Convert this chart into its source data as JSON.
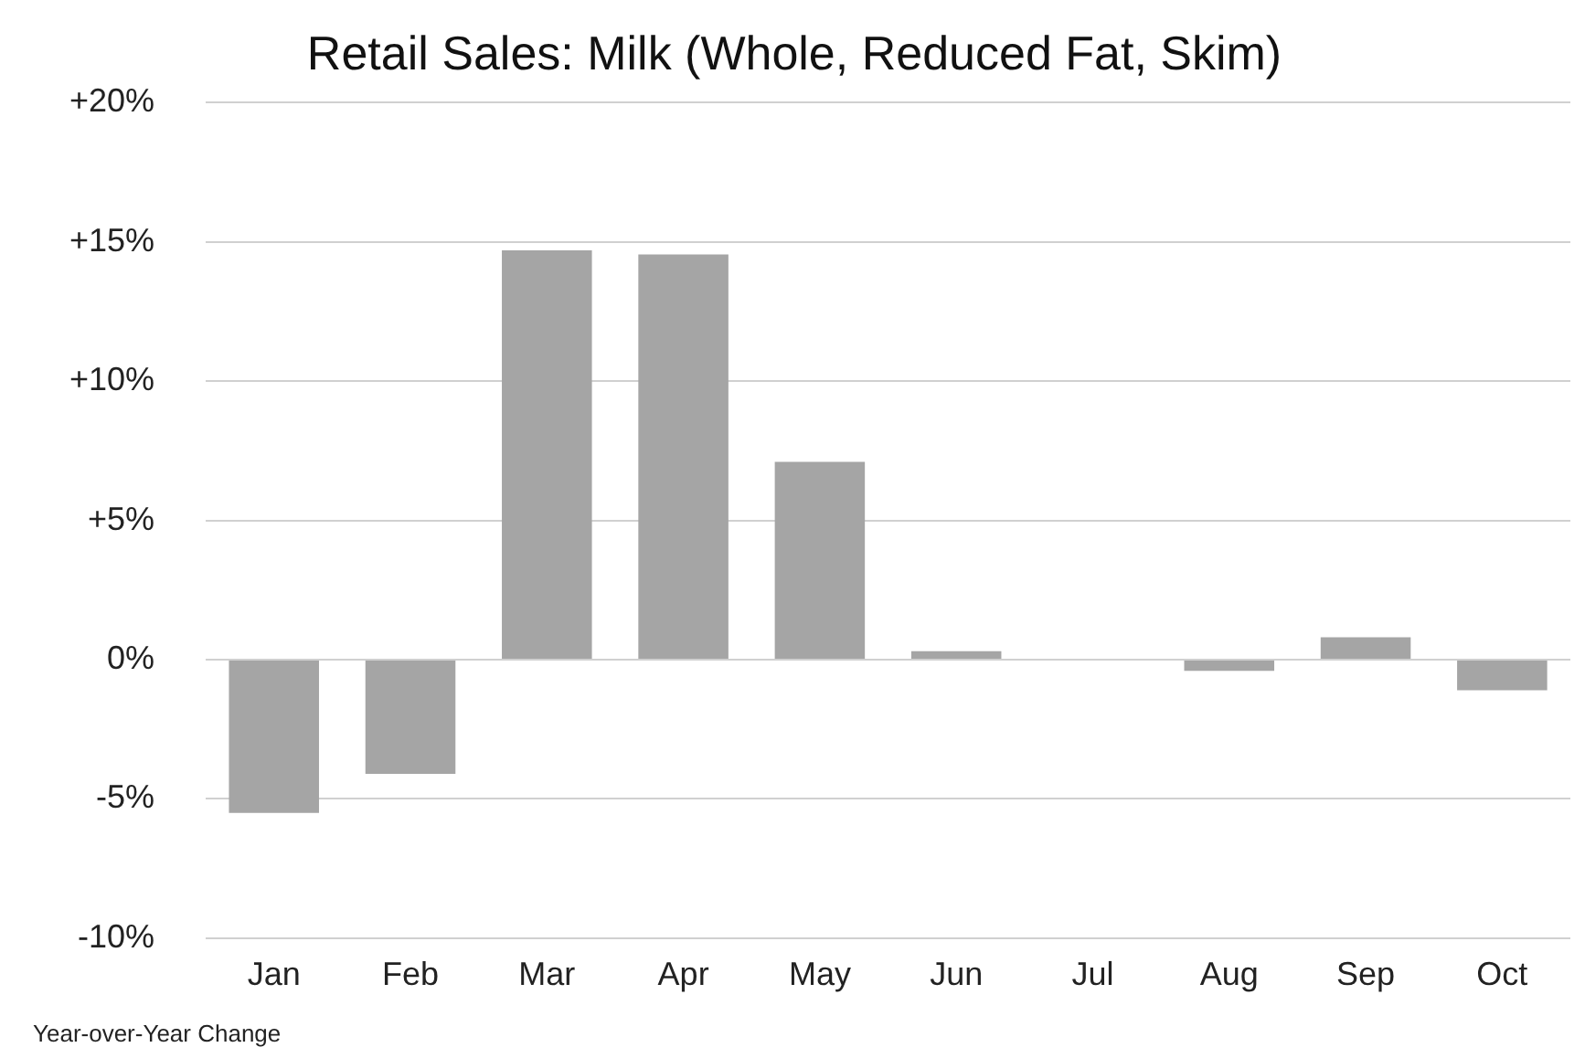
{
  "chart_data": {
    "type": "bar",
    "title": "Retail Sales: Milk (Whole, Reduced Fat, Skim)",
    "categories": [
      "Jan",
      "Feb",
      "Mar",
      "Apr",
      "May",
      "Jun",
      "Jul",
      "Aug",
      "Sep",
      "Oct"
    ],
    "values": [
      -5.5,
      -4.1,
      14.7,
      14.55,
      7.1,
      0.3,
      0,
      -0.4,
      0.8,
      -1.1
    ],
    "color": "#a5a5a5",
    "ylim": [
      -10,
      20
    ],
    "yticks": [
      {
        "value": -10,
        "label": "-10%"
      },
      {
        "value": -5,
        "label": "-5%"
      },
      {
        "value": 0,
        "label": "0%"
      },
      {
        "value": 5,
        "label": "+5%"
      },
      {
        "value": 10,
        "label": "+10%"
      },
      {
        "value": 15,
        "label": "+15%"
      },
      {
        "value": 20,
        "label": "+20%"
      }
    ],
    "grid": "y",
    "annotations": [
      "Year-over-Year Change"
    ]
  }
}
